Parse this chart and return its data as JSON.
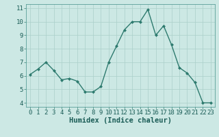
{
  "x": [
    0,
    1,
    2,
    3,
    4,
    5,
    6,
    7,
    8,
    9,
    10,
    11,
    12,
    13,
    14,
    15,
    16,
    17,
    18,
    19,
    20,
    21,
    22,
    23
  ],
  "y": [
    6.1,
    6.5,
    7.0,
    6.4,
    5.7,
    5.8,
    5.6,
    4.8,
    4.8,
    5.2,
    7.0,
    8.2,
    9.4,
    10.0,
    10.0,
    10.9,
    9.0,
    9.7,
    8.3,
    6.6,
    6.2,
    5.5,
    4.0,
    4.0
  ],
  "line_color": "#2d7a6e",
  "marker": "D",
  "marker_size": 2.0,
  "linewidth": 1.0,
  "bg_color": "#cce8e4",
  "grid_color": "#aacfca",
  "xlabel": "Humidex (Indice chaleur)",
  "xlim": [
    -0.5,
    23.5
  ],
  "ylim": [
    3.7,
    11.3
  ],
  "yticks": [
    4,
    5,
    6,
    7,
    8,
    9,
    10,
    11
  ],
  "xtick_labels": [
    "0",
    "1",
    "2",
    "3",
    "4",
    "5",
    "6",
    "7",
    "8",
    "9",
    "10",
    "11",
    "12",
    "13",
    "14",
    "15",
    "16",
    "17",
    "18",
    "19",
    "20",
    "21",
    "22",
    "23"
  ],
  "xlabel_fontsize": 7.5,
  "tick_fontsize": 6.5,
  "fig_bg_color": "#cce8e4"
}
